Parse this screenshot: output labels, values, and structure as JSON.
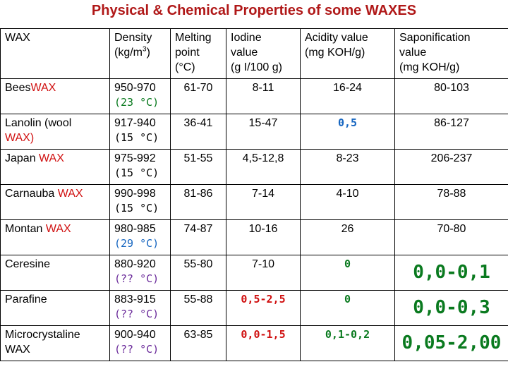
{
  "title": "Physical & Chemical Properties of some WAXES",
  "headers": {
    "wax": "WAX",
    "density": "Density",
    "density_unit_pre": "(kg/m",
    "density_unit_sup": "3",
    "density_unit_post": ")",
    "melting_1": "Melting",
    "melting_2": "point",
    "melting_3": "(°C)",
    "iodine_1": "Iodine",
    "iodine_2": "value",
    "iodine_3": "(g I/100 g)",
    "acidity_1": "Acidity value",
    "acidity_2": "(mg KOH/g)",
    "sapon_1": "Saponification",
    "sapon_2": "value",
    "sapon_3": "(mg KOH/g)"
  },
  "rows": [
    {
      "name_pre": "Bees",
      "name_wax": "WAX",
      "density": "950-970",
      "temp": "(23 °C)",
      "melting": "61-70",
      "iodine": "8-11",
      "acidity": "16-24",
      "sapon": "80-103"
    },
    {
      "name_pre": "Lanolin (wool",
      "name_wax": "WAX)",
      "density": "917-940",
      "temp": "(15 °C)",
      "melting": "36-41",
      "iodine": "15-47",
      "acidity": "0,5",
      "sapon": "86-127"
    },
    {
      "name_pre": "Japan ",
      "name_wax": "WAX",
      "density": "975-992",
      "temp": "(15 °C)",
      "melting": "51-55",
      "iodine": "4,5-12,8",
      "acidity": "8-23",
      "sapon": "206-237"
    },
    {
      "name_pre": "Carnauba ",
      "name_wax": "WAX",
      "density": "990-998",
      "temp": "(15 °C)",
      "melting": "81-86",
      "iodine": "7-14",
      "acidity": "4-10",
      "sapon": "78-88"
    },
    {
      "name_pre": "Montan ",
      "name_wax": "WAX",
      "density": "980-985",
      "temp": "(29 °C)",
      "melting": "74-87",
      "iodine": "10-16",
      "acidity": "26",
      "sapon": "70-80"
    },
    {
      "name_pre": "Ceresine",
      "name_wax": "",
      "density": "880-920",
      "temp": "(?? °C)",
      "melting": "55-80",
      "iodine": "7-10",
      "acidity": "0",
      "sapon": "0,0-0,1"
    },
    {
      "name_pre": "Parafine",
      "name_wax": "",
      "density": "883-915",
      "temp": "(?? °C)",
      "melting": "55-88",
      "iodine": "0,5-2,5",
      "acidity": "0",
      "sapon": "0,0-0,3"
    },
    {
      "name_pre": "Microcrystaline",
      "name_wax": "WAX",
      "density": "900-940",
      "temp": "(?? °C)",
      "melting": "63-85",
      "iodine": "0,0-1,5",
      "acidity": "0,1-0,2",
      "sapon": "0,05-2,00"
    }
  ],
  "colors": {
    "title": "#b01818",
    "wax_word": "#d01010",
    "temp_green": "#0a7a1f",
    "temp_blue": "#1565c0",
    "temp_purple": "#6a2a9a",
    "value_red": "#d01010",
    "value_green": "#0a7a1f",
    "value_blue": "#1565c0"
  }
}
